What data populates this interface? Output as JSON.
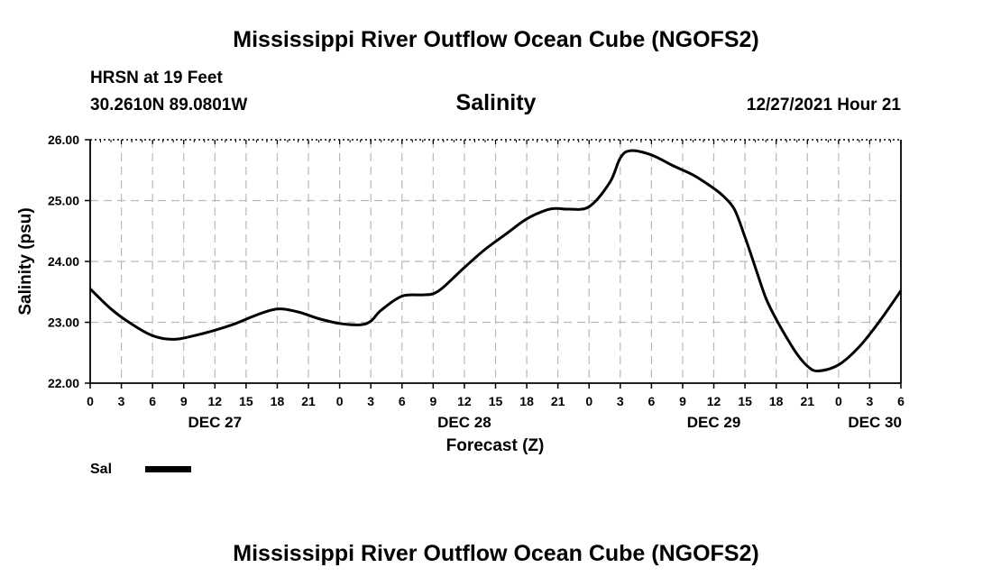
{
  "header": {
    "title": "Mississippi River Outflow Ocean Cube (NGOFS2)",
    "station": "HRSN at 19 Feet",
    "coordinates": "30.2610N  89.0801W",
    "datetime": "12/27/2021 Hour 21",
    "footer_title": "Mississippi River Outflow Ocean Cube (NGOFS2)"
  },
  "chart_data": {
    "type": "line",
    "title": "Salinity",
    "xlabel": "Forecast (Z)",
    "ylabel": "Salinity (psu)",
    "xlim": [
      0,
      78
    ],
    "ylim": [
      22.0,
      26.0
    ],
    "grid": true,
    "yticks": [
      22.0,
      23.0,
      24.0,
      25.0,
      26.0
    ],
    "ytick_labels": [
      "22.00",
      "23.00",
      "24.00",
      "25.00",
      "26.00"
    ],
    "xticks": [
      0,
      3,
      6,
      9,
      12,
      15,
      18,
      21,
      24,
      27,
      30,
      33,
      36,
      39,
      42,
      45,
      48,
      51,
      54,
      57,
      60,
      63,
      66,
      69,
      72,
      75,
      78
    ],
    "xtick_labels": [
      "0",
      "3",
      "6",
      "9",
      "12",
      "15",
      "18",
      "21",
      "0",
      "3",
      "6",
      "9",
      "12",
      "15",
      "18",
      "21",
      "0",
      "3",
      "6",
      "9",
      "12",
      "15",
      "18",
      "21",
      "0",
      "3",
      "6"
    ],
    "date_labels": [
      {
        "x": 12,
        "label": "DEC 27"
      },
      {
        "x": 36,
        "label": "DEC 28"
      },
      {
        "x": 60,
        "label": "DEC 29"
      },
      {
        "x": 75.5,
        "label": "DEC 30"
      }
    ],
    "legend_position": "bottom-left",
    "series": [
      {
        "name": "Sal",
        "x": [
          0,
          2,
          4,
          6,
          8,
          10,
          12,
          14,
          16,
          18,
          20,
          22,
          24,
          26,
          27,
          28,
          30,
          32,
          33,
          34,
          36,
          38,
          40,
          42,
          44,
          45,
          46,
          48,
          50,
          51,
          52,
          54,
          56,
          58,
          60,
          61,
          62,
          63,
          64,
          65,
          66,
          67,
          68,
          69,
          70,
          72,
          74,
          76,
          78
        ],
        "values": [
          23.55,
          23.22,
          22.97,
          22.78,
          22.72,
          22.78,
          22.87,
          22.98,
          23.12,
          23.22,
          23.17,
          23.06,
          22.98,
          22.96,
          23.02,
          23.2,
          23.43,
          23.45,
          23.47,
          23.58,
          23.9,
          24.2,
          24.45,
          24.7,
          24.85,
          24.87,
          24.86,
          24.9,
          25.3,
          25.7,
          25.82,
          25.75,
          25.58,
          25.42,
          25.2,
          25.06,
          24.85,
          24.4,
          23.9,
          23.4,
          23.05,
          22.75,
          22.48,
          22.28,
          22.2,
          22.3,
          22.6,
          23.03,
          23.52
        ]
      }
    ]
  }
}
